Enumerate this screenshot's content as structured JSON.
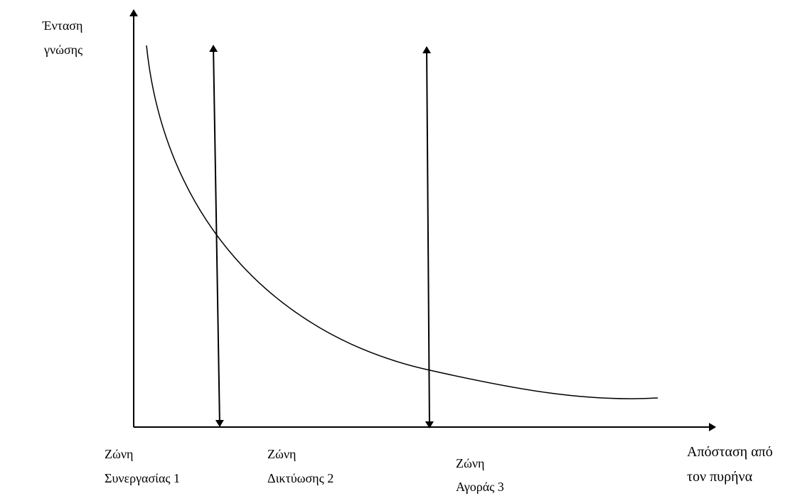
{
  "y_axis_label": {
    "lines": [
      "Ένταση",
      "γνώσης"
    ]
  },
  "x_axis_label": {
    "lines": [
      "Απόσταση από",
      "τον πυρήνα"
    ]
  },
  "zones": [
    {
      "lines": [
        "Ζώνη",
        "Συνεργασίας 1"
      ]
    },
    {
      "lines": [
        "Ζώνη",
        "Δικτύωσης  2"
      ]
    },
    {
      "lines": [
        "Ζώνη",
        "Αγοράς 3"
      ]
    }
  ]
}
